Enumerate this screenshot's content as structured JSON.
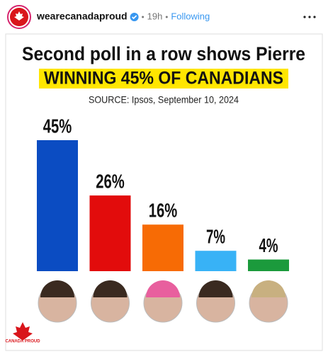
{
  "post": {
    "username": "wearecanadaproud",
    "time": "19h",
    "follow": "Following",
    "logo_text": "CANADA PROUD"
  },
  "chart_data": {
    "type": "bar",
    "title": "Second poll in a row shows Pierre",
    "subtitle": "WINNING 45% OF CANADIANS",
    "source": "SOURCE: Ipsos, September 10, 2024",
    "categories": [
      null,
      null,
      null,
      null,
      null
    ],
    "values": [
      45,
      26,
      16,
      7,
      4
    ],
    "value_labels": [
      "45%",
      "26%",
      "16%",
      "7%",
      "4%"
    ],
    "colors": [
      "#0b4cc2",
      "#e20c0c",
      "#f76b05",
      "#38b2f6",
      "#1b9a3c"
    ],
    "highlight_color": "#ffe600"
  }
}
